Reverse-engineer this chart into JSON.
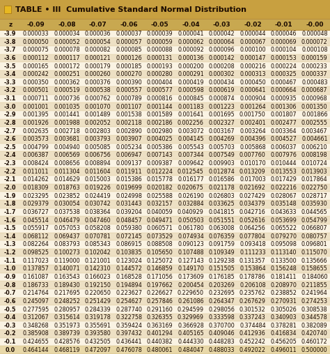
{
  "title": "TABLE • III  Cumulative Standard Normal Distribution",
  "col_headers": [
    "z",
    "-0.09",
    "-0.08",
    "-0.07",
    "-0.06",
    "-0.05",
    "-0.04",
    "-0.03",
    "-0.02",
    "-0.01",
    "-0.00"
  ],
  "rows": [
    [
      "-3.9",
      "0.000033",
      "0.000034",
      "0.000036",
      "0.000037",
      "0.000039",
      "0.000041",
      "0.000042",
      "0.000044",
      "0.000046",
      "0.000048"
    ],
    [
      "-3.8",
      "0.000050",
      "0.000052",
      "0.000054",
      "0.000057",
      "0.000059",
      "0.000062",
      "0.000064",
      "0.000067",
      "0.000069",
      "0.000072"
    ],
    [
      "-3.7",
      "0.000075",
      "0.000078",
      "0.000082",
      "0.000085",
      "0.000088",
      "0.000092",
      "0.000096",
      "0.000100",
      "0.000104",
      "0.000108"
    ],
    [
      "-3.6",
      "0.000112",
      "0.000117",
      "0.000121",
      "0.000126",
      "0.000131",
      "0.000136",
      "0.000142",
      "0.000147",
      "0.000153",
      "0.000159"
    ],
    [
      "-3.5",
      "0.000165",
      "0.000172",
      "0.000179",
      "0.000185",
      "0.000193",
      "0.000200",
      "0.000208",
      "0.000216",
      "0.000224",
      "0.000233"
    ],
    [
      "-3.4",
      "0.000242",
      "0.000251",
      "0.000260",
      "0.000270",
      "0.000280",
      "0.000291",
      "0.000302",
      "0.000313",
      "0.000325",
      "0.000337"
    ],
    [
      "-3.3",
      "0.000350",
      "0.000362",
      "0.000376",
      "0.000390",
      "0.000404",
      "0.000419",
      "0.000434",
      "0.000450",
      "0.000467",
      "0.000483"
    ],
    [
      "-3.2",
      "0.000501",
      "0.000519",
      "0.000538",
      "0.000557",
      "0.000577",
      "0.000598",
      "0.000619",
      "0.000641",
      "0.000664",
      "0.000687"
    ],
    [
      "-3.1",
      "0.000711",
      "0.000736",
      "0.000762",
      "0.000789",
      "0.000816",
      "0.000845",
      "0.000874",
      "0.000904",
      "0.000935",
      "0.000968"
    ],
    [
      "-3.0",
      "0.001001",
      "0.001035",
      "0.001070",
      "0.001107",
      "0.001144",
      "0.001183",
      "0.001223",
      "0.001264",
      "0.001306",
      "0.001350"
    ],
    [
      "-2.9",
      "0.001395",
      "0.001441",
      "0.001489",
      "0.001538",
      "0.001589",
      "0.001641",
      "0.001695",
      "0.001750",
      "0.001807",
      "0.001866"
    ],
    [
      "-2.8",
      "0.001926",
      "0.001988",
      "0.002052",
      "0.002118",
      "0.002186",
      "0.002256",
      "0.002327",
      "0.002401",
      "0.002477",
      "0.002555"
    ],
    [
      "-2.7",
      "0.002635",
      "0.002718",
      "0.002803",
      "0.002890",
      "0.002980",
      "0.003072",
      "0.003167",
      "0.003264",
      "0.003364",
      "0.003467"
    ],
    [
      "-2.6",
      "0.003573",
      "0.003681",
      "0.003793",
      "0.003907",
      "0.004025",
      "0.004145",
      "0.004269",
      "0.004396",
      "0.004527",
      "0.004661"
    ],
    [
      "-2.5",
      "0.004799",
      "0.004940",
      "0.005085",
      "0.005234",
      "0.005386",
      "0.005543",
      "0.005703",
      "0.005868",
      "0.006037",
      "0.006210"
    ],
    [
      "-2.4",
      "0.006387",
      "0.006569",
      "0.006756",
      "0.006947",
      "0.007143",
      "0.007344",
      "0.007549",
      "0.007760",
      "0.007976",
      "0.008198"
    ],
    [
      "-2.3",
      "0.008424",
      "0.008656",
      "0.008894",
      "0.009137",
      "0.009387",
      "0.009642",
      "0.009903",
      "0.010170",
      "0.010444",
      "0.010724"
    ],
    [
      "-2.2",
      "0.011011",
      "0.011304",
      "0.011604",
      "0.011911",
      "0.012224",
      "0.012545",
      "0.012874",
      "0.013209",
      "0.013553",
      "0.013903"
    ],
    [
      "-2.1",
      "0.014262",
      "0.014629",
      "0.015003",
      "0.015386",
      "0.015778",
      "0.016177",
      "0.016586",
      "0.017003",
      "0.017429",
      "0.017864"
    ],
    [
      "-2.0",
      "0.018309",
      "0.018763",
      "0.019226",
      "0.019699",
      "0.020182",
      "0.020675",
      "0.021178",
      "0.021692",
      "0.022216",
      "0.022750"
    ],
    [
      "-1.9",
      "0.023295",
      "0.023852",
      "0.024419",
      "0.024998",
      "0.025588",
      "0.026190",
      "0.026803",
      "0.027429",
      "0.028067",
      "0.028717"
    ],
    [
      "-1.8",
      "0.029379",
      "0.030054",
      "0.030742",
      "0.031443",
      "0.032157",
      "0.032884",
      "0.033625",
      "0.034379",
      "0.035148",
      "0.035930"
    ],
    [
      "-1.7",
      "0.036727",
      "0.037538",
      "0.038364",
      "0.039204",
      "0.040059",
      "0.040929",
      "0.041815",
      "0.042716",
      "0.043633",
      "0.044565"
    ],
    [
      "-1.6",
      "0.045514",
      "0.046479",
      "0.047460",
      "0.048457",
      "0.049471",
      "0.050503",
      "0.051551",
      "0.052616",
      "0.053699",
      "0.054799"
    ],
    [
      "-1.5",
      "0.055917",
      "0.057053",
      "0.058208",
      "0.059380",
      "0.060571",
      "0.061780",
      "0.063008",
      "0.064256",
      "0.065522",
      "0.066807"
    ],
    [
      "-1.4",
      "0.068112",
      "0.069437",
      "0.070781",
      "0.072145",
      "0.073529",
      "0.074934",
      "0.076359",
      "0.077804",
      "0.079270",
      "0.080757"
    ],
    [
      "-1.3",
      "0.082264",
      "0.083793",
      "0.085343",
      "0.086915",
      "0.088508",
      "0.090123",
      "0.091759",
      "0.093418",
      "0.095098",
      "0.096801"
    ],
    [
      "-1.2",
      "0.098525",
      "0.100273",
      "0.102042",
      "0.103835",
      "0.105650",
      "0.107488",
      "0.109349",
      "0.111233",
      "0.113140",
      "0.115070"
    ],
    [
      "-1.1",
      "0.117023",
      "0.119000",
      "0.121001",
      "0.123024",
      "0.125072",
      "0.127143",
      "0.129238",
      "0.131357",
      "0.133500",
      "0.135666"
    ],
    [
      "-1.0",
      "0.137857",
      "0.140071",
      "0.142310",
      "0.144572",
      "0.146859",
      "0.149170",
      "0.151505",
      "0.153864",
      "0.156248",
      "0.158655"
    ],
    [
      "-0.9",
      "0.161087",
      "0.163543",
      "0.166023",
      "0.168528",
      "0.171056",
      "0.173609",
      "0.176185",
      "0.178786",
      "0.181411",
      "0.184060"
    ],
    [
      "-0.8",
      "0.186733",
      "0.189430",
      "0.192150",
      "0.194894",
      "0.197662",
      "0.200454",
      "0.203269",
      "0.206108",
      "0.208970",
      "0.211855"
    ],
    [
      "-0.7",
      "0.214764",
      "0.217695",
      "0.220650",
      "0.223627",
      "0.226627",
      "0.229650",
      "0.232695",
      "0.235762",
      "0.238852",
      "0.241964"
    ],
    [
      "-0.6",
      "0.245097",
      "0.248252",
      "0.251429",
      "0.254627",
      "0.257846",
      "0.261086",
      "0.264347",
      "0.267629",
      "0.270931",
      "0.274253"
    ],
    [
      "-0.5",
      "0.277595",
      "0.280957",
      "0.284339",
      "0.287740",
      "0.291160",
      "0.294599",
      "0.298056",
      "0.301532",
      "0.305026",
      "0.308538"
    ],
    [
      "-0.4",
      "0.312067",
      "0.315614",
      "0.319178",
      "0.322758",
      "0.326355",
      "0.329969",
      "0.333598",
      "0.337243",
      "0.340903",
      "0.344578"
    ],
    [
      "-0.3",
      "0.348268",
      "0.351973",
      "0.355691",
      "0.359424",
      "0.363169",
      "0.366928",
      "0.370700",
      "0.374484",
      "0.378281",
      "0.382089"
    ],
    [
      "-0.2",
      "0.385908",
      "0.389739",
      "0.393580",
      "0.397432",
      "0.401294",
      "0.405165",
      "0.409046",
      "0.412936",
      "0.416834",
      "0.420740"
    ],
    [
      "-0.1",
      "0.424655",
      "0.428576",
      "0.432505",
      "0.436441",
      "0.440382",
      "0.444330",
      "0.448283",
      "0.452242",
      "0.456205",
      "0.460172"
    ],
    [
      "0.0",
      "0.464144",
      "0.468119",
      "0.472097",
      "0.476078",
      "0.480061",
      "0.484047",
      "0.488033",
      "0.492022",
      "0.496011",
      "0.500000"
    ]
  ],
  "title_bg": "#c8a040",
  "header_bg": "#c8a850",
  "odd_row_bg": "#faf3e3",
  "even_row_bg": "#ede0c4",
  "last_row_bg": "#e8d8a8",
  "border_color": "#b89040",
  "header_text_color": "#1a0a00",
  "row_text_color": "#1a0a00",
  "title_text_color": "#1a0a00",
  "z_col_text_color": "#1a0a00",
  "cell_font_size": 5.8,
  "header_font_size": 6.5,
  "title_font_size": 8.0
}
